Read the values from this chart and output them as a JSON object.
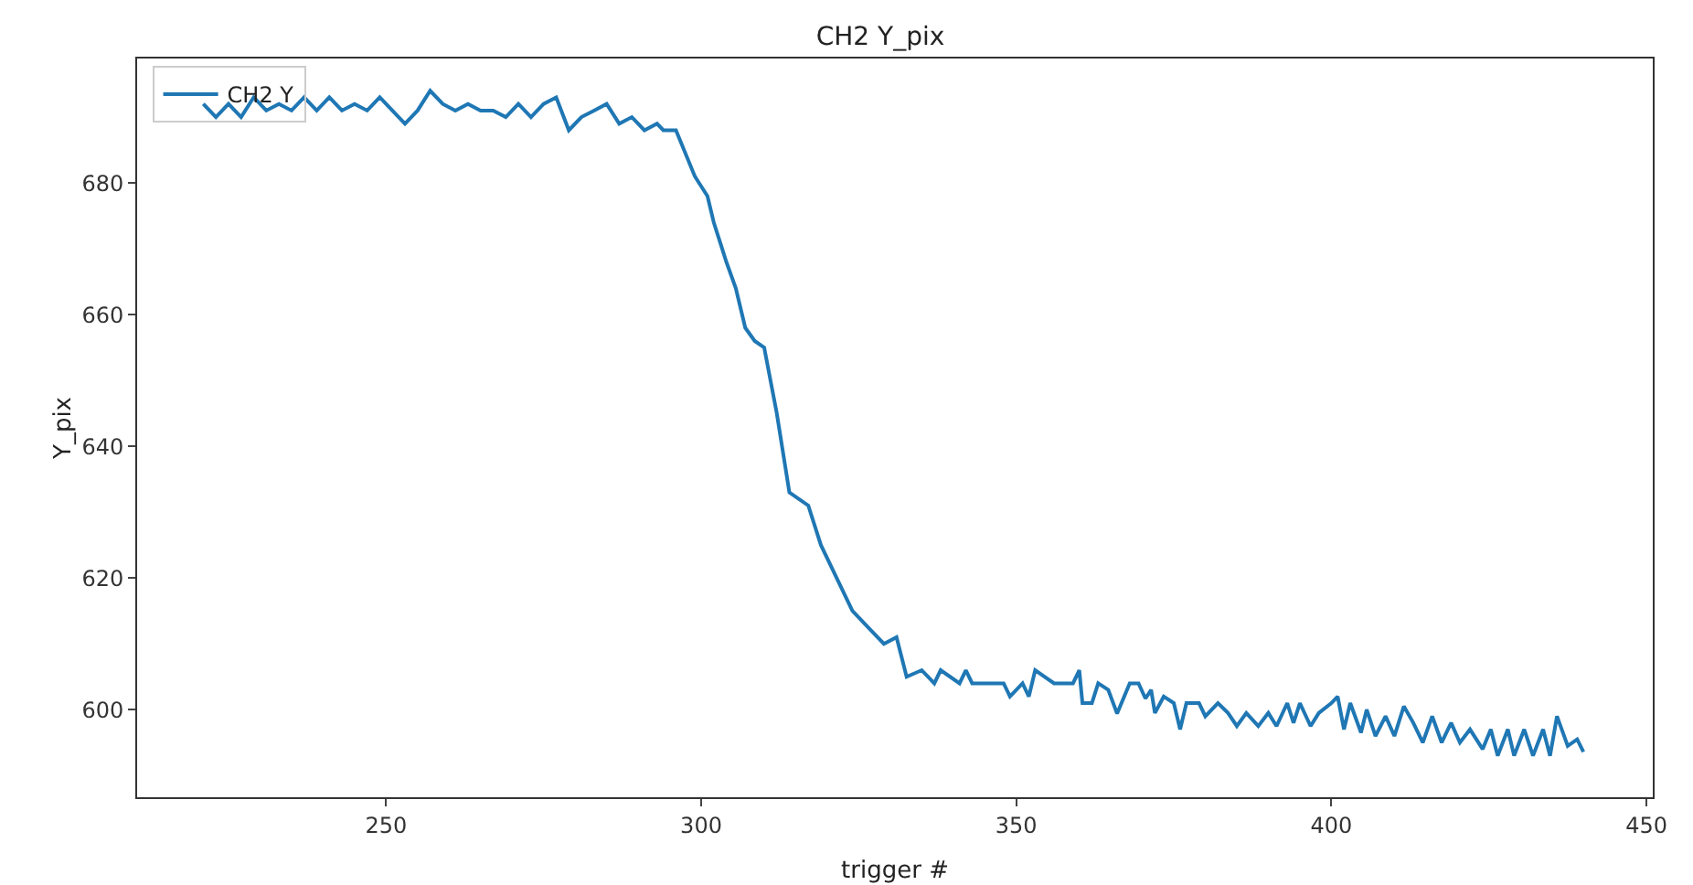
{
  "chart_data": {
    "type": "line",
    "title": "CH2 Y_pix",
    "xlabel": "trigger #",
    "ylabel": "Y_pix",
    "series": [
      {
        "name": "CH2 Y",
        "color": "#1f77b4",
        "x": [
          221,
          223,
          225,
          227,
          229,
          231,
          233,
          235,
          237,
          239,
          241,
          243,
          245,
          247,
          249,
          251,
          253,
          255,
          257,
          259,
          261,
          263,
          265,
          267,
          269,
          271,
          273,
          275,
          277,
          279,
          281,
          283,
          285,
          287,
          289,
          291,
          293,
          294,
          296,
          299,
          301,
          302,
          303,
          304,
          305.5,
          307,
          308.5,
          310,
          312,
          314,
          317,
          319,
          322,
          324,
          326,
          327,
          329,
          331,
          332.6,
          335,
          337,
          338,
          341,
          342,
          343,
          348,
          349,
          351,
          352,
          353,
          356,
          359,
          360,
          360.5,
          362,
          363,
          364.6,
          366,
          368,
          369.4,
          370.5,
          371.4,
          372,
          373.4,
          375,
          376,
          377,
          379,
          380,
          382,
          383.6,
          385,
          386.5,
          388.4,
          390,
          391.3,
          393,
          394,
          395,
          396.7,
          398,
          400,
          401,
          402,
          403,
          404.7,
          405.6,
          407,
          408.6,
          410,
          411.5,
          413,
          414.5,
          416,
          417.5,
          419,
          420.4,
          422,
          424,
          425.3,
          426.4,
          428,
          429,
          430.6,
          432,
          433.6,
          434.7,
          435.8,
          437.5,
          439,
          440
        ],
        "values": [
          692,
          690,
          692,
          690,
          693,
          691,
          692,
          691,
          693,
          691,
          693,
          691,
          692,
          691,
          693,
          691,
          689,
          691,
          694,
          692,
          691,
          692,
          691,
          691,
          690,
          692,
          690,
          692,
          693,
          688,
          690,
          691,
          692,
          689,
          690,
          688,
          689,
          688,
          688,
          681,
          678,
          674,
          671,
          668,
          664,
          658,
          656,
          655,
          645,
          633,
          631,
          625,
          619,
          615,
          613,
          612,
          610,
          611,
          605,
          606,
          604,
          606,
          604,
          606,
          604,
          604,
          602,
          604,
          602,
          606,
          604,
          604,
          606,
          601,
          601,
          604,
          603,
          599.4,
          604,
          604,
          601.7,
          603,
          599.5,
          602,
          601,
          597,
          601,
          601,
          599,
          601,
          599.5,
          597.5,
          599.5,
          597.5,
          599.5,
          597.5,
          601,
          598,
          601,
          597.5,
          599.5,
          601,
          602,
          597,
          601,
          596.5,
          600,
          596,
          599,
          596,
          600.5,
          598,
          595,
          599,
          595,
          598,
          595,
          597,
          594,
          597,
          593,
          597,
          593,
          597,
          593,
          597,
          593,
          599,
          594.5,
          595.5,
          593.6
        ]
      }
    ],
    "xlim": [
      210.5,
      451
    ],
    "ylim": [
      586.7,
      698.9
    ],
    "xticks": [
      250,
      300,
      350,
      400,
      450
    ],
    "yticks": [
      600,
      620,
      640,
      660,
      680
    ],
    "grid": false,
    "legend": "top left",
    "marker": "none",
    "line_style": "solid"
  }
}
